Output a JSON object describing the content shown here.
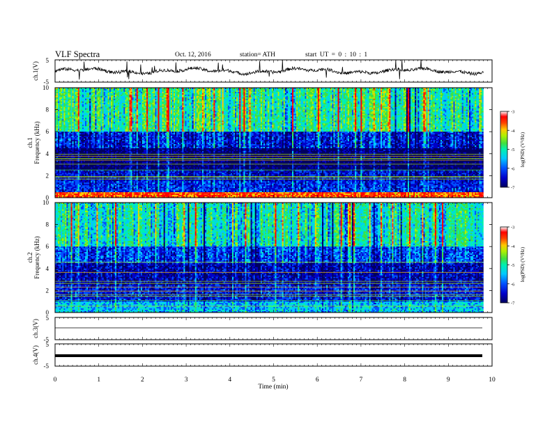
{
  "header": {
    "title": "VLF  Spectra",
    "date": "Oct. 12,  2016",
    "station": "station= ATH",
    "start_ut": "start  UT  =   0  : 10 : 1"
  },
  "colors": {
    "colormap": [
      "#000060",
      "#0000c8",
      "#0050ff",
      "#00c8ff",
      "#00f0b0",
      "#40e040",
      "#b0f000",
      "#ffc800",
      "#ff4000",
      "#ff0000",
      "#ffffff"
    ],
    "trace": "#000000"
  },
  "chart_data": [
    {
      "type": "line",
      "panel": "ch1-waveform",
      "ylabel": "ch.1(V)",
      "ylim": [
        -5,
        5
      ],
      "yticks": [
        "5",
        "-5"
      ],
      "description_values": "noisy waveform centred near 0 V with spikes, spanning 0 to about 9.8 min",
      "x_range_min": [
        0,
        9.8
      ],
      "baseline_v": 0
    },
    {
      "type": "heatmap",
      "panel": "ch1-spectrogram",
      "ylabel_top": "ch.1",
      "ylabel": "Frequency  (kHz)",
      "ylim": [
        0,
        10
      ],
      "yticks": [
        "0",
        "2",
        "4",
        "6",
        "8",
        "10"
      ],
      "x_range_min": [
        0,
        9.8
      ],
      "colorbar": {
        "label": "log(PSD) (V²/Hz)",
        "range": [
          -7,
          -3
        ],
        "ticks": [
          "-3",
          "-4",
          "-5",
          "-6",
          "-7"
        ]
      },
      "band_levels": [
        {
          "f_khz": [
            0.0,
            0.5
          ],
          "log_psd": -3.6
        },
        {
          "f_khz": [
            0.5,
            1.5
          ],
          "log_psd": -6.2
        },
        {
          "f_khz": [
            1.5,
            2.5
          ],
          "log_psd": -6.4
        },
        {
          "f_khz": [
            2.5,
            4.5
          ],
          "log_psd": -6.8
        },
        {
          "f_khz": [
            4.5,
            6.0
          ],
          "log_psd": -6.3
        },
        {
          "f_khz": [
            6.0,
            10.0
          ],
          "log_psd": -5.1
        }
      ]
    },
    {
      "type": "heatmap",
      "panel": "ch2-spectrogram",
      "ylabel_top": "ch.2",
      "ylabel": "Frequency  (kHz)",
      "ylim": [
        0,
        10
      ],
      "yticks": [
        "0",
        "2",
        "4",
        "6",
        "8",
        "10"
      ],
      "x_range_min": [
        0,
        9.8
      ],
      "colorbar": {
        "label": "log(PSD) (V²/Hz)",
        "range": [
          -7,
          -3
        ],
        "ticks": [
          "-3",
          "-4",
          "-5",
          "-6",
          "-7"
        ]
      },
      "band_levels": [
        {
          "f_khz": [
            0.0,
            1.0
          ],
          "log_psd": -5.6
        },
        {
          "f_khz": [
            1.0,
            2.5
          ],
          "log_psd": -6.3
        },
        {
          "f_khz": [
            2.5,
            4.5
          ],
          "log_psd": -6.5
        },
        {
          "f_khz": [
            4.5,
            6.0
          ],
          "log_psd": -6.1
        },
        {
          "f_khz": [
            6.0,
            10.0
          ],
          "log_psd": -5.3
        }
      ]
    },
    {
      "type": "line",
      "panel": "ch3-waveform",
      "ylabel": "ch.3(V)",
      "ylim": [
        -5,
        5
      ],
      "yticks": [
        "5",
        "-5"
      ],
      "x_range_min": [
        0,
        9.8
      ],
      "baseline_v": 0
    },
    {
      "type": "line",
      "panel": "ch4-waveform",
      "ylabel": "ch.4(V)",
      "ylim": [
        -5,
        5
      ],
      "yticks": [
        "5",
        "-5"
      ],
      "x_range_min": [
        0,
        9.8
      ],
      "baseline_v": 0
    }
  ],
  "xaxis": {
    "label": "Time  (min)",
    "ticks": [
      "0",
      "1",
      "2",
      "3",
      "4",
      "5",
      "6",
      "7",
      "8",
      "9",
      "10"
    ],
    "range": [
      0,
      10
    ]
  }
}
